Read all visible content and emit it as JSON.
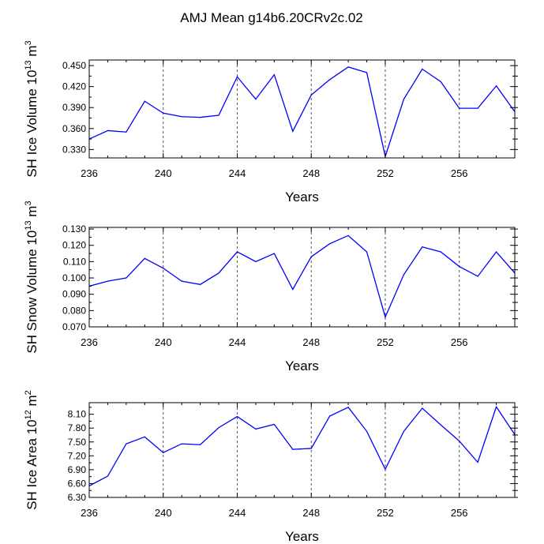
{
  "title": "AMJ Mean g14b6.20CRv2c.02",
  "chart_data": [
    {
      "type": "line",
      "ylabel": "SH Ice Volume",
      "yunit_base": "10",
      "yunit_exp": "13",
      "yunit_suffix": "m",
      "yunit_suffix_exp": "3",
      "xlabel": "Years",
      "xlim": [
        236,
        259
      ],
      "ylim": [
        0.318,
        0.458
      ],
      "yticks": [
        "0.330",
        "0.360",
        "0.390",
        "0.420",
        "0.450"
      ],
      "xticks": [
        "236",
        "240",
        "244",
        "248",
        "252",
        "256"
      ],
      "line_color": "#0000ff",
      "x": [
        236,
        237,
        238,
        239,
        240,
        241,
        242,
        243,
        244,
        245,
        246,
        247,
        248,
        249,
        250,
        251,
        252,
        253,
        254,
        255,
        256,
        257,
        258,
        259
      ],
      "values": [
        0.345,
        0.357,
        0.355,
        0.399,
        0.382,
        0.377,
        0.376,
        0.379,
        0.434,
        0.402,
        0.437,
        0.356,
        0.408,
        0.43,
        0.448,
        0.44,
        0.32,
        0.402,
        0.445,
        0.427,
        0.389,
        0.389,
        0.421,
        0.384
      ]
    },
    {
      "type": "line",
      "ylabel": "SH Snow Volume",
      "yunit_base": "10",
      "yunit_exp": "13",
      "yunit_suffix": "m",
      "yunit_suffix_exp": "3",
      "xlabel": "Years",
      "xlim": [
        236,
        259
      ],
      "ylim": [
        0.07,
        0.131
      ],
      "yticks": [
        "0.070",
        "0.080",
        "0.090",
        "0.100",
        "0.110",
        "0.120",
        "0.130"
      ],
      "xticks": [
        "236",
        "240",
        "244",
        "248",
        "252",
        "256"
      ],
      "line_color": "#0000ff",
      "x": [
        236,
        237,
        238,
        239,
        240,
        241,
        242,
        243,
        244,
        245,
        246,
        247,
        248,
        249,
        250,
        251,
        252,
        253,
        254,
        255,
        256,
        257,
        258,
        259
      ],
      "values": [
        0.095,
        0.098,
        0.1,
        0.112,
        0.106,
        0.098,
        0.096,
        0.103,
        0.116,
        0.11,
        0.115,
        0.093,
        0.113,
        0.121,
        0.126,
        0.116,
        0.076,
        0.102,
        0.119,
        0.116,
        0.107,
        0.101,
        0.116,
        0.103
      ]
    },
    {
      "type": "line",
      "ylabel": "SH Ice Area",
      "yunit_base": "10",
      "yunit_exp": "12",
      "yunit_suffix": "m",
      "yunit_suffix_exp": "2",
      "xlabel": "Years",
      "xlim": [
        236,
        259
      ],
      "ylim": [
        6.3,
        8.35
      ],
      "yticks": [
        "6.30",
        "6.60",
        "6.90",
        "7.20",
        "7.50",
        "7.80",
        "8.10"
      ],
      "xticks": [
        "236",
        "240",
        "244",
        "248",
        "252",
        "256"
      ],
      "line_color": "#0000ff",
      "x": [
        236,
        237,
        238,
        239,
        240,
        241,
        242,
        243,
        244,
        245,
        246,
        247,
        248,
        249,
        250,
        251,
        252,
        253,
        254,
        255,
        256,
        257,
        258,
        259
      ],
      "values": [
        6.55,
        6.76,
        7.46,
        7.61,
        7.27,
        7.46,
        7.44,
        7.81,
        8.05,
        7.78,
        7.88,
        7.34,
        7.36,
        8.06,
        8.25,
        7.73,
        6.91,
        7.73,
        8.23,
        7.87,
        7.52,
        7.06,
        8.26,
        7.66
      ]
    }
  ]
}
